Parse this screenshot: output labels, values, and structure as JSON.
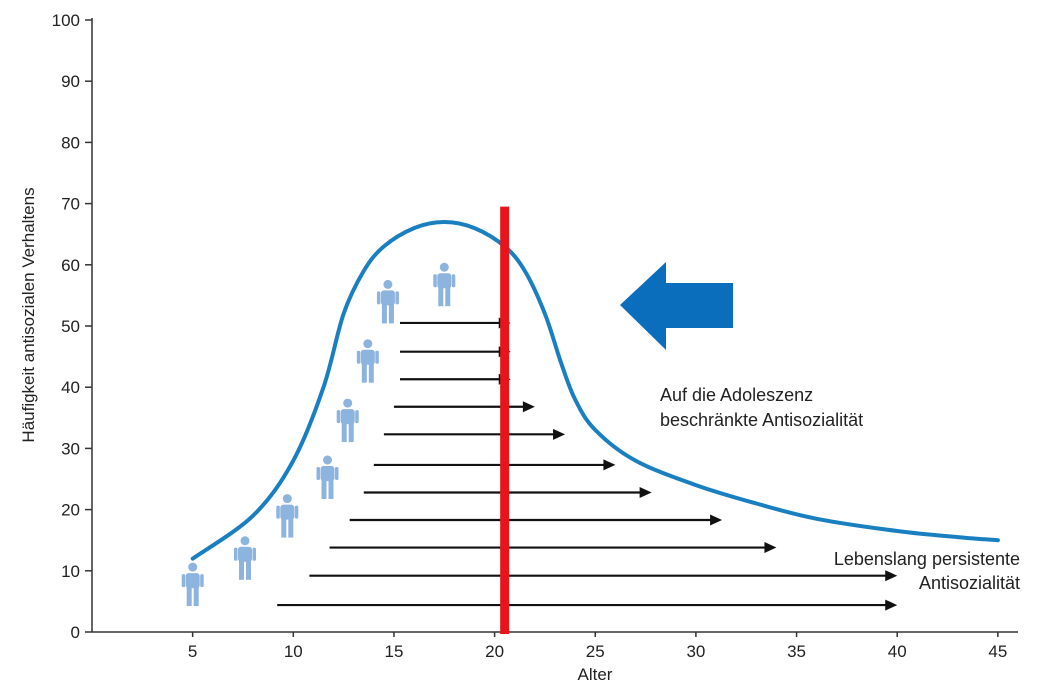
{
  "chart_data": {
    "type": "line",
    "title": "",
    "xlabel": "Alter",
    "ylabel": "Häufigkeit antisozialen Verhaltens",
    "xlim": [
      0,
      46
    ],
    "ylim": [
      0,
      100
    ],
    "xticks": [
      5,
      10,
      15,
      20,
      25,
      30,
      35,
      40,
      45
    ],
    "yticks": [
      0,
      10,
      20,
      30,
      40,
      50,
      60,
      70,
      80,
      90,
      100
    ],
    "grid": false,
    "series": [
      {
        "color": "#1a7fc0",
        "x": [
          5,
          8,
          10,
          11.5,
          12.5,
          13.5,
          14.5,
          16,
          17.5,
          19,
          20.5,
          21.5,
          22.5,
          23.3,
          24,
          25,
          27,
          30,
          33,
          36,
          40,
          43,
          45
        ],
        "y": [
          12,
          19,
          28,
          40,
          52,
          59,
          63,
          66,
          67,
          66,
          63,
          59,
          52,
          44,
          38,
          33,
          28,
          24,
          21,
          18.5,
          16.5,
          15.5,
          15
        ]
      }
    ],
    "arrows": [
      {
        "x_start": 15.3,
        "x_end": 20.8,
        "y": 50.5
      },
      {
        "x_start": 15.3,
        "x_end": 20.8,
        "y": 45.8
      },
      {
        "x_start": 15.3,
        "x_end": 20.8,
        "y": 41.3
      },
      {
        "x_start": 15.0,
        "x_end": 22.0,
        "y": 36.8
      },
      {
        "x_start": 14.5,
        "x_end": 23.5,
        "y": 32.3
      },
      {
        "x_start": 14.0,
        "x_end": 26.0,
        "y": 27.3
      },
      {
        "x_start": 13.5,
        "x_end": 27.8,
        "y": 22.8
      },
      {
        "x_start": 12.8,
        "x_end": 31.3,
        "y": 18.3
      },
      {
        "x_start": 11.8,
        "x_end": 34.0,
        "y": 13.8
      },
      {
        "x_start": 10.8,
        "x_end": 40.0,
        "y": 9.2
      },
      {
        "x_start": 9.2,
        "x_end": 40.0,
        "y": 4.4
      }
    ],
    "people": [
      {
        "x": 5.0,
        "y": 7.5
      },
      {
        "x": 7.6,
        "y": 11.8
      },
      {
        "x": 9.7,
        "y": 18.7
      },
      {
        "x": 11.7,
        "y": 25.0
      },
      {
        "x": 12.7,
        "y": 34.3
      },
      {
        "x": 13.7,
        "y": 44.0
      },
      {
        "x": 14.7,
        "y": 53.7
      },
      {
        "x": 17.5,
        "y": 56.5
      }
    ],
    "marker_line": {
      "x": 20.5,
      "color": "#e8141b",
      "y_top": 69.5
    },
    "highlight_arrow": {
      "color": "#0a6ebd",
      "direction": "left"
    },
    "annotations": [
      {
        "lines": [
          "Auf die Adoleszenz",
          "beschränkte Antisozialität"
        ]
      },
      {
        "lines": [
          "Lebenslang persistente",
          "Antisozialität"
        ]
      }
    ]
  }
}
